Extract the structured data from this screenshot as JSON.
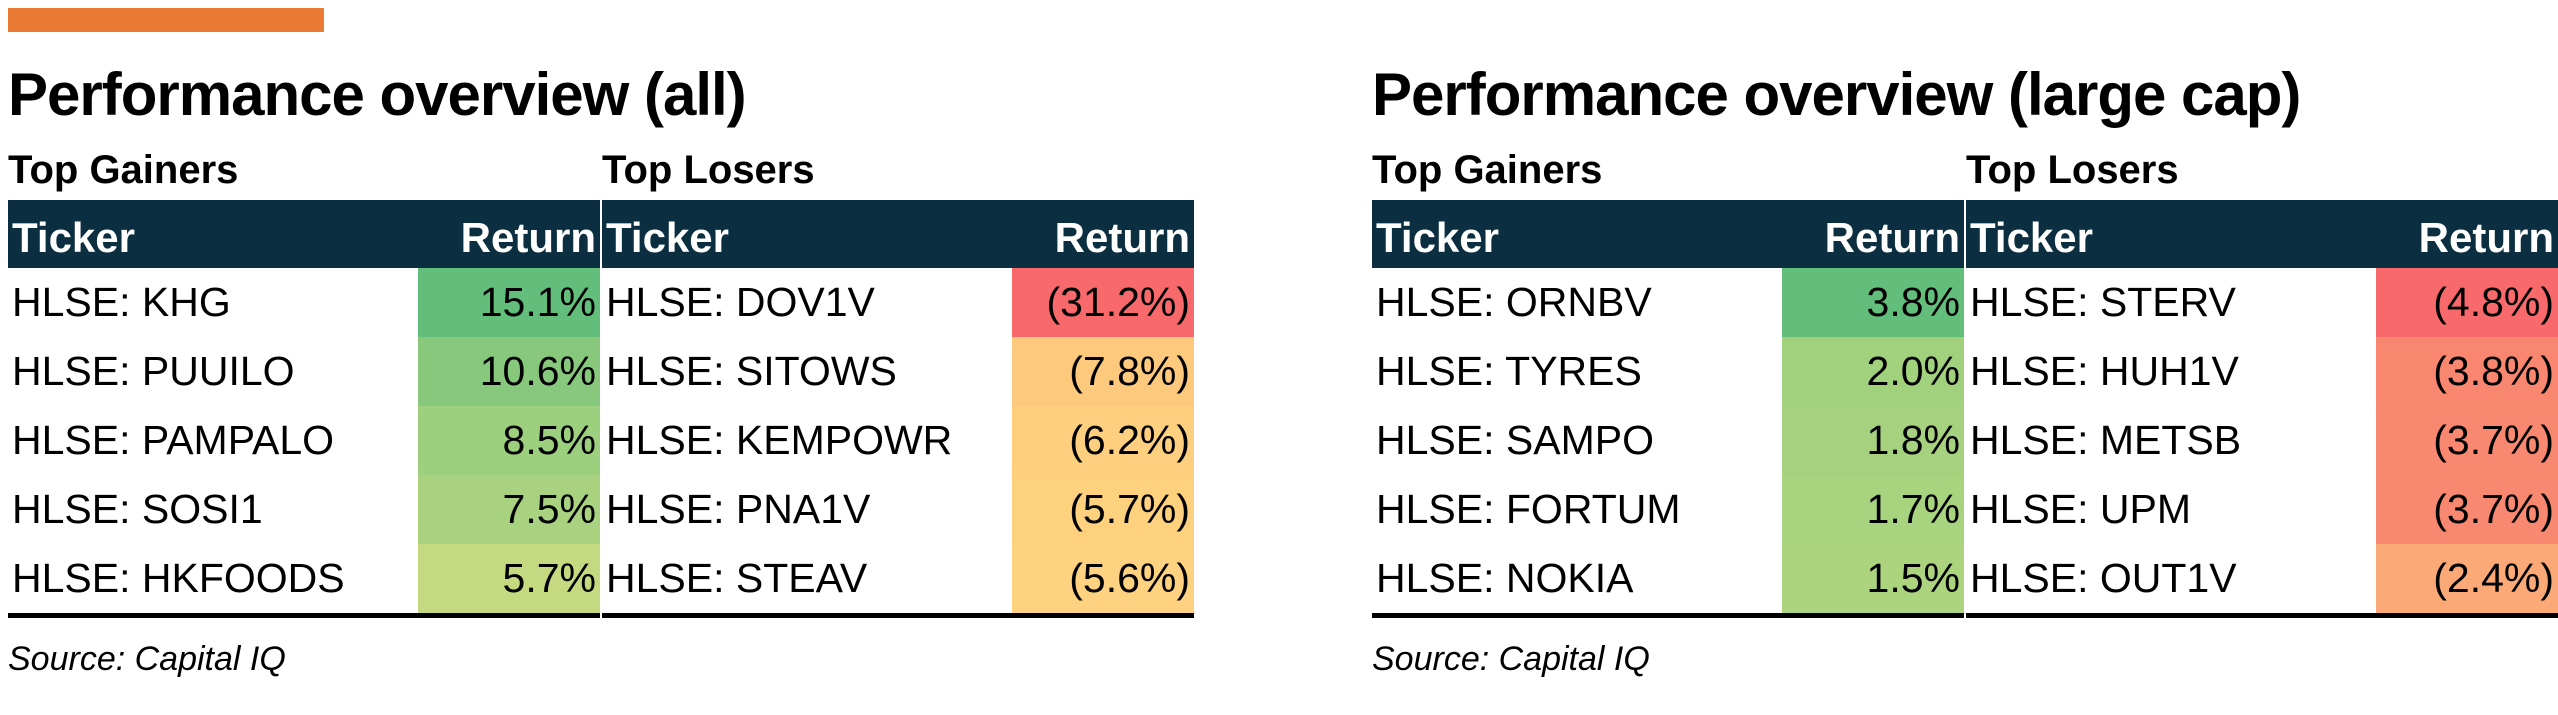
{
  "colors": {
    "accent": "#ea7a34",
    "header_bg": "#0b2f40",
    "header_text": "#ffffff"
  },
  "panels": [
    {
      "title": "Performance overview (all)",
      "source": "Source: Capital IQ",
      "gainers": {
        "title": "Top Gainers",
        "col_ticker": "Ticker",
        "col_return": "Return",
        "rows": [
          {
            "ticker": "HLSE: KHG",
            "ret": "15.1%",
            "color": "#63be7b"
          },
          {
            "ticker": "HLSE: PUUILO",
            "ret": "10.6%",
            "color": "#88c87c"
          },
          {
            "ticker": "HLSE: PAMPALO",
            "ret": "8.5%",
            "color": "#9ccf7e"
          },
          {
            "ticker": "HLSE: SOSI1",
            "ret": "7.5%",
            "color": "#a8d27f"
          },
          {
            "ticker": "HLSE: HKFOODS",
            "ret": "5.7%",
            "color": "#c4d980"
          }
        ]
      },
      "losers": {
        "title": "Top Losers",
        "col_ticker": "Ticker",
        "col_return": "Return",
        "rows": [
          {
            "ticker": "HLSE: DOV1V",
            "ret": "(31.2%)",
            "color": "#f8696b"
          },
          {
            "ticker": "HLSE: SITOWS",
            "ret": "(7.8%)",
            "color": "#fdc97d"
          },
          {
            "ticker": "HLSE: KEMPOWR",
            "ret": "(6.2%)",
            "color": "#fecf7f"
          },
          {
            "ticker": "HLSE: PNA1V",
            "ret": "(5.7%)",
            "color": "#fed17f"
          },
          {
            "ticker": "HLSE: STEAV",
            "ret": "(5.6%)",
            "color": "#fed280"
          }
        ]
      }
    },
    {
      "title": "Performance overview (large cap)",
      "source": "Source: Capital IQ",
      "gainers": {
        "title": "Top Gainers",
        "col_ticker": "Ticker",
        "col_return": "Return",
        "rows": [
          {
            "ticker": "HLSE: ORNBV",
            "ret": "3.8%",
            "color": "#63be7b"
          },
          {
            "ticker": "HLSE: TYRES",
            "ret": "2.0%",
            "color": "#a2d17e"
          },
          {
            "ticker": "HLSE: SAMPO",
            "ret": "1.8%",
            "color": "#a6d27f"
          },
          {
            "ticker": "HLSE: FORTUM",
            "ret": "1.7%",
            "color": "#a8d37f"
          },
          {
            "ticker": "HLSE: NOKIA",
            "ret": "1.5%",
            "color": "#acd47f"
          }
        ]
      },
      "losers": {
        "title": "Top Losers",
        "col_ticker": "Ticker",
        "col_return": "Return",
        "rows": [
          {
            "ticker": "HLSE: STERV",
            "ret": "(4.8%)",
            "color": "#f8696b"
          },
          {
            "ticker": "HLSE: HUH1V",
            "ret": "(3.8%)",
            "color": "#f9866f"
          },
          {
            "ticker": "HLSE: METSB",
            "ret": "(3.7%)",
            "color": "#f98870"
          },
          {
            "ticker": "HLSE: UPM",
            "ret": "(3.7%)",
            "color": "#f98870"
          },
          {
            "ticker": "HLSE: OUT1V",
            "ret": "(2.4%)",
            "color": "#fbaa77"
          }
        ]
      }
    }
  ]
}
